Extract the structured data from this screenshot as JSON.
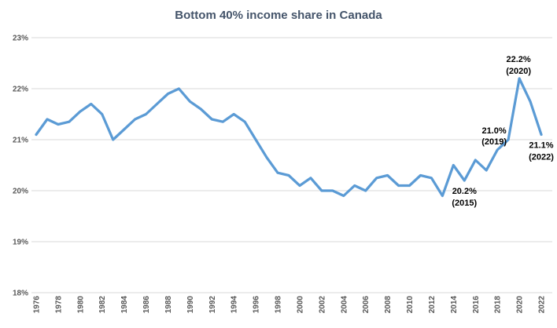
{
  "chart_data": {
    "type": "line",
    "title": "Bottom 40% income share in Canada",
    "series_name": "Bottom 40% income share",
    "x": [
      1976,
      1977,
      1978,
      1979,
      1980,
      1981,
      1982,
      1983,
      1984,
      1985,
      1986,
      1987,
      1988,
      1989,
      1990,
      1991,
      1992,
      1993,
      1994,
      1995,
      1996,
      1997,
      1998,
      1999,
      2000,
      2001,
      2002,
      2003,
      2004,
      2005,
      2006,
      2007,
      2008,
      2009,
      2010,
      2011,
      2012,
      2013,
      2014,
      2015,
      2016,
      2017,
      2018,
      2019,
      2020,
      2021,
      2022
    ],
    "values": [
      21.1,
      21.4,
      21.3,
      21.35,
      21.55,
      21.7,
      21.5,
      21.0,
      21.2,
      21.4,
      21.5,
      21.7,
      21.9,
      22.0,
      21.75,
      21.6,
      21.4,
      21.35,
      21.5,
      21.35,
      21.0,
      20.65,
      20.35,
      20.3,
      20.1,
      20.25,
      20.0,
      20.0,
      19.9,
      20.1,
      20.0,
      20.25,
      20.3,
      20.1,
      20.1,
      20.3,
      20.25,
      19.9,
      20.5,
      20.2,
      20.6,
      20.4,
      20.8,
      21.0,
      22.2,
      21.75,
      21.1
    ],
    "xlabel": "",
    "ylabel": "",
    "xlim": [
      1976,
      2022
    ],
    "ylim": [
      18,
      23
    ],
    "x_tick_labels": [
      "1976",
      "1978",
      "1980",
      "1982",
      "1984",
      "1986",
      "1988",
      "1990",
      "1992",
      "1994",
      "1996",
      "1998",
      "2000",
      "2002",
      "2004",
      "2006",
      "2008",
      "2010",
      "2012",
      "2014",
      "2016",
      "2018",
      "2020",
      "2022"
    ],
    "y_ticks": [
      18,
      19,
      20,
      21,
      22,
      23
    ],
    "y_tick_labels": [
      "18%",
      "19%",
      "20%",
      "21%",
      "22%",
      "23%"
    ],
    "grid": "horizontal-on",
    "legend": "none",
    "annotations": [
      {
        "label": "20.2%",
        "sub": "(2015)",
        "year": 2015,
        "value": 20.2,
        "placement": "below-center"
      },
      {
        "label": "21.0%",
        "sub": "(2019)",
        "year": 2019,
        "value": 21.0,
        "placement": "upper-left"
      },
      {
        "label": "22.2%",
        "sub": "(2020)",
        "year": 2020,
        "value": 22.2,
        "placement": "above-center"
      },
      {
        "label": "21.1%",
        "sub": "(2022)",
        "year": 2022,
        "value": 21.1,
        "placement": "below-center"
      }
    ],
    "colors": {
      "line": "#5B9BD5",
      "gridline": "#D9D9D9",
      "tick_text": "#595959",
      "title_text": "#44546A",
      "annotation_text": "#000000",
      "background": "#FFFFFF"
    }
  }
}
